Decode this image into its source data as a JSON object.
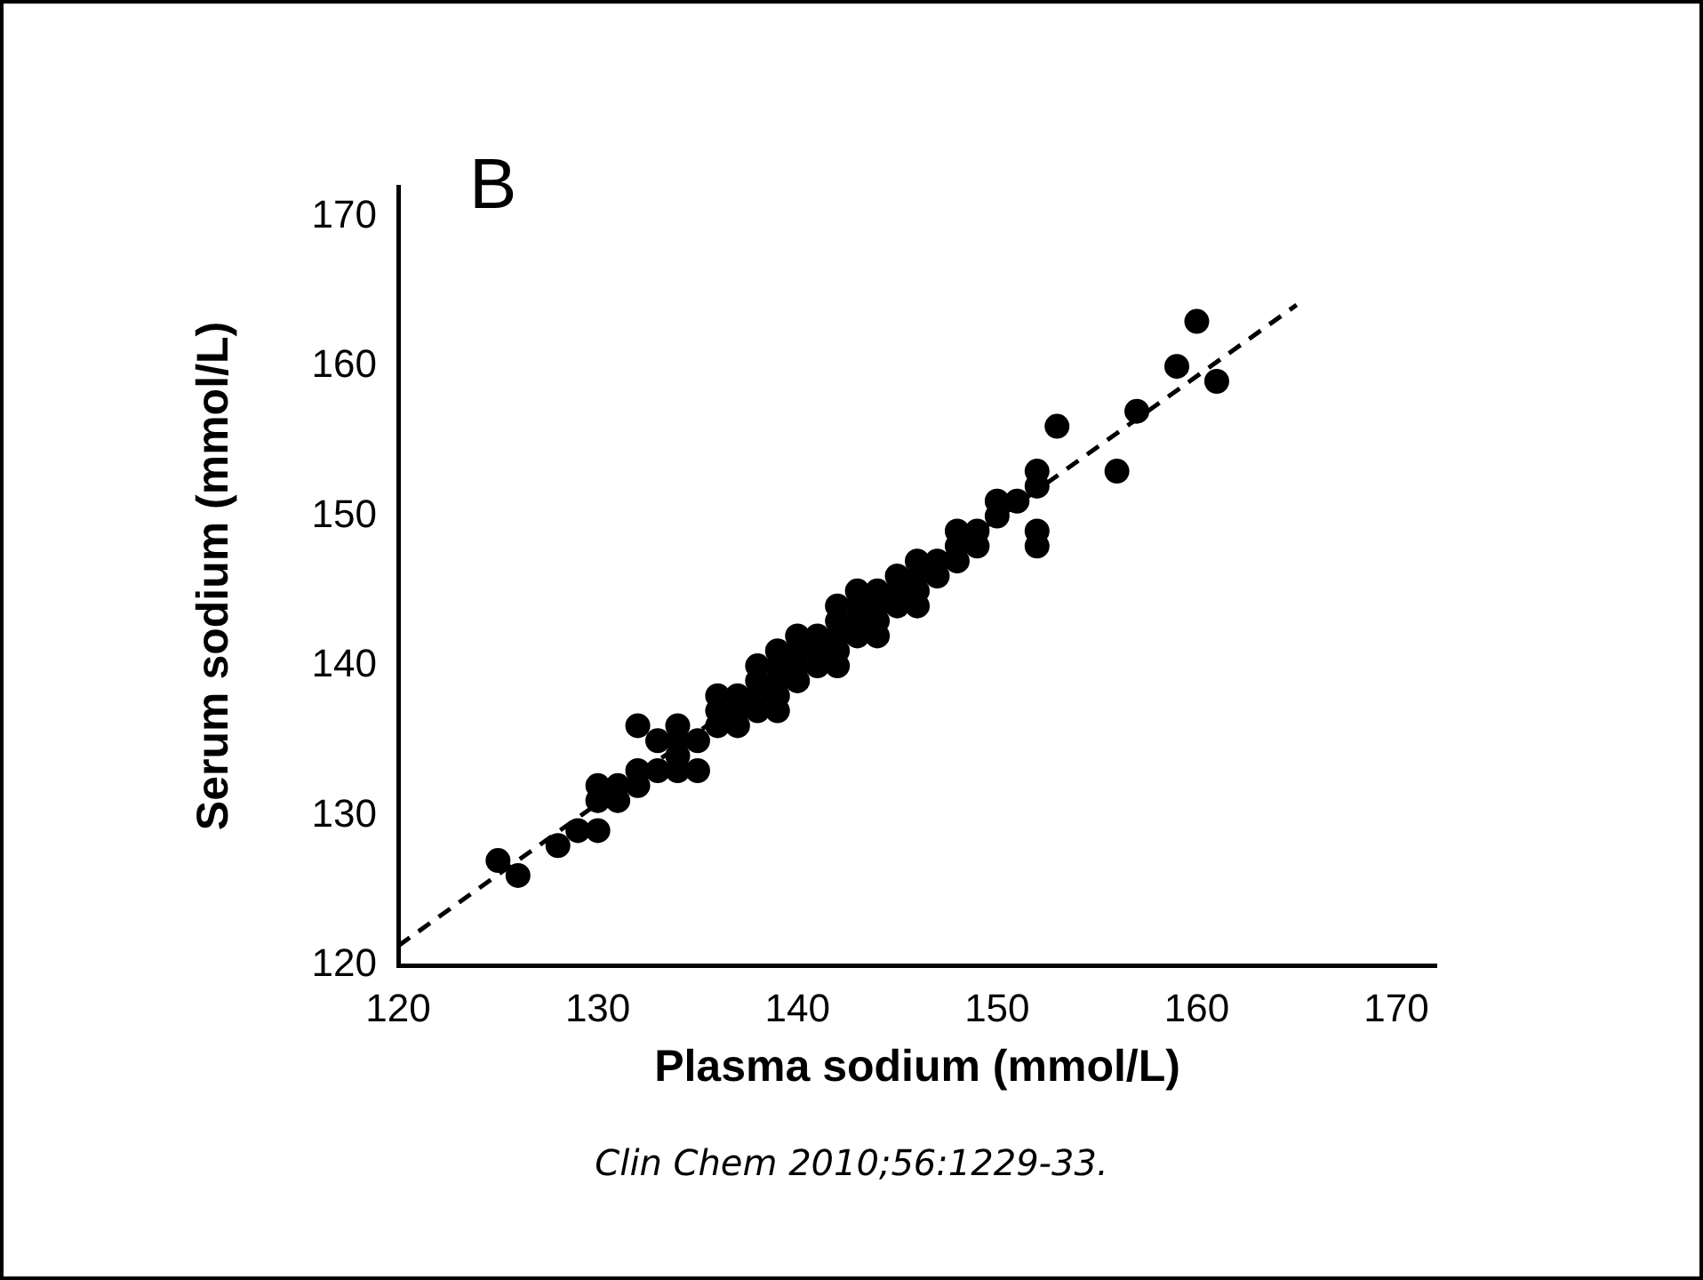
{
  "chart_data": {
    "type": "scatter",
    "xlabel": "Plasma sodium (mmol/L)",
    "ylabel": "Serum sodium (mmol/L)",
    "annotations": [
      "B",
      "Clin Chem 2010;56:1229-33."
    ],
    "xlim": [
      120,
      172
    ],
    "ylim": [
      120,
      172
    ],
    "xticks": [
      120,
      130,
      140,
      150,
      160,
      170
    ],
    "yticks": [
      120,
      130,
      140,
      150,
      160,
      170
    ],
    "grid": false,
    "legend": false,
    "marker": "circle",
    "series": [
      {
        "color": "#000000",
        "x": [
          125,
          126,
          128,
          129,
          130,
          130,
          130,
          131,
          131,
          132,
          132,
          132,
          133,
          133,
          134,
          134,
          134,
          134,
          135,
          135,
          136,
          136,
          136,
          137,
          137,
          137,
          138,
          138,
          138,
          138,
          139,
          139,
          139,
          139,
          139,
          140,
          140,
          140,
          140,
          141,
          141,
          141,
          142,
          142,
          142,
          142,
          142,
          143,
          143,
          143,
          143,
          144,
          144,
          144,
          144,
          145,
          145,
          145,
          146,
          146,
          146,
          146,
          147,
          147,
          148,
          148,
          148,
          149,
          149,
          150,
          150,
          151,
          152,
          152,
          152,
          152,
          153,
          156,
          157,
          159,
          160,
          161
        ],
        "values": [
          127,
          126,
          128,
          129,
          129,
          131,
          132,
          131,
          132,
          132,
          133,
          136,
          133,
          135,
          133,
          134,
          135,
          136,
          133,
          135,
          136,
          137,
          138,
          136,
          137,
          138,
          137,
          138,
          139,
          140,
          137,
          138,
          139,
          140,
          141,
          139,
          140,
          141,
          142,
          140,
          141,
          142,
          140,
          141,
          142,
          143,
          144,
          142,
          143,
          144,
          145,
          142,
          143,
          144,
          145,
          144,
          145,
          146,
          144,
          145,
          146,
          147,
          146,
          147,
          147,
          148,
          149,
          148,
          149,
          150,
          151,
          151,
          148,
          149,
          152,
          153,
          156,
          153,
          157,
          160,
          163,
          159
        ]
      },
      {
        "type": "line",
        "color": "#000000",
        "line_style": "dashed",
        "marker": "none",
        "x": [
          120,
          165
        ],
        "values": [
          121.3,
          164.1
        ]
      }
    ]
  }
}
